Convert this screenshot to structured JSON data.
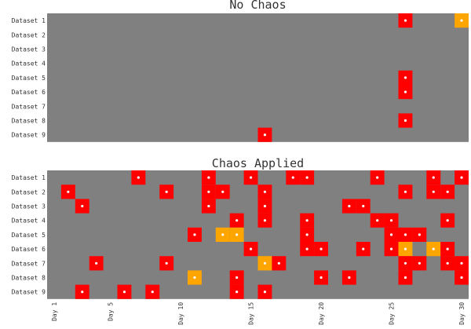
{
  "colors": {
    "background": "#808080",
    "red": "#ff0000",
    "orange": "#ffa500",
    "marker": "#ffffff"
  },
  "chart_data": [
    {
      "type": "heatmap",
      "title": "No Chaos",
      "rows": [
        "Dataset 1",
        "Dataset 2",
        "Dataset 3",
        "Dataset 4",
        "Dataset 5",
        "Dataset 6",
        "Dataset 7",
        "Dataset 8",
        "Dataset 9"
      ],
      "x_range": [
        1,
        30
      ],
      "cells": [
        {
          "row": "Dataset 1",
          "day": 26,
          "level": "red"
        },
        {
          "row": "Dataset 1",
          "day": 30,
          "level": "orange"
        },
        {
          "row": "Dataset 5",
          "day": 26,
          "level": "red"
        },
        {
          "row": "Dataset 6",
          "day": 26,
          "level": "red"
        },
        {
          "row": "Dataset 8",
          "day": 26,
          "level": "red"
        },
        {
          "row": "Dataset 9",
          "day": 16,
          "level": "red"
        }
      ]
    },
    {
      "type": "heatmap",
      "title": "Chaos Applied",
      "rows": [
        "Dataset 1",
        "Dataset 2",
        "Dataset 3",
        "Dataset 4",
        "Dataset 5",
        "Dataset 6",
        "Dataset 7",
        "Dataset 8",
        "Dataset 9"
      ],
      "x_range": [
        1,
        30
      ],
      "x_tick_labels": [
        "Day 1",
        "Day 5",
        "Day 10",
        "Day 15",
        "Day 20",
        "Day 25",
        "Day 30"
      ],
      "x_tick_days": [
        1,
        5,
        10,
        15,
        20,
        25,
        30
      ],
      "cells": [
        {
          "row": "Dataset 1",
          "day": 7,
          "level": "red"
        },
        {
          "row": "Dataset 1",
          "day": 12,
          "level": "red"
        },
        {
          "row": "Dataset 1",
          "day": 15,
          "level": "red"
        },
        {
          "row": "Dataset 1",
          "day": 18,
          "level": "red"
        },
        {
          "row": "Dataset 1",
          "day": 19,
          "level": "red"
        },
        {
          "row": "Dataset 1",
          "day": 24,
          "level": "red"
        },
        {
          "row": "Dataset 1",
          "day": 28,
          "level": "red"
        },
        {
          "row": "Dataset 1",
          "day": 30,
          "level": "red"
        },
        {
          "row": "Dataset 2",
          "day": 2,
          "level": "red"
        },
        {
          "row": "Dataset 2",
          "day": 9,
          "level": "red"
        },
        {
          "row": "Dataset 2",
          "day": 12,
          "level": "red"
        },
        {
          "row": "Dataset 2",
          "day": 13,
          "level": "red"
        },
        {
          "row": "Dataset 2",
          "day": 16,
          "level": "red"
        },
        {
          "row": "Dataset 2",
          "day": 26,
          "level": "red"
        },
        {
          "row": "Dataset 2",
          "day": 28,
          "level": "red"
        },
        {
          "row": "Dataset 2",
          "day": 29,
          "level": "red"
        },
        {
          "row": "Dataset 3",
          "day": 3,
          "level": "red"
        },
        {
          "row": "Dataset 3",
          "day": 12,
          "level": "red"
        },
        {
          "row": "Dataset 3",
          "day": 16,
          "level": "red"
        },
        {
          "row": "Dataset 3",
          "day": 22,
          "level": "red"
        },
        {
          "row": "Dataset 3",
          "day": 23,
          "level": "red"
        },
        {
          "row": "Dataset 4",
          "day": 14,
          "level": "red"
        },
        {
          "row": "Dataset 4",
          "day": 16,
          "level": "red"
        },
        {
          "row": "Dataset 4",
          "day": 19,
          "level": "red"
        },
        {
          "row": "Dataset 4",
          "day": 24,
          "level": "red"
        },
        {
          "row": "Dataset 4",
          "day": 25,
          "level": "red"
        },
        {
          "row": "Dataset 4",
          "day": 29,
          "level": "red"
        },
        {
          "row": "Dataset 5",
          "day": 11,
          "level": "red"
        },
        {
          "row": "Dataset 5",
          "day": 13,
          "level": "orange"
        },
        {
          "row": "Dataset 5",
          "day": 14,
          "level": "orange"
        },
        {
          "row": "Dataset 5",
          "day": 19,
          "level": "red"
        },
        {
          "row": "Dataset 5",
          "day": 25,
          "level": "red"
        },
        {
          "row": "Dataset 5",
          "day": 26,
          "level": "red"
        },
        {
          "row": "Dataset 5",
          "day": 27,
          "level": "red"
        },
        {
          "row": "Dataset 6",
          "day": 15,
          "level": "red"
        },
        {
          "row": "Dataset 6",
          "day": 19,
          "level": "red"
        },
        {
          "row": "Dataset 6",
          "day": 20,
          "level": "red"
        },
        {
          "row": "Dataset 6",
          "day": 23,
          "level": "red"
        },
        {
          "row": "Dataset 6",
          "day": 25,
          "level": "red"
        },
        {
          "row": "Dataset 6",
          "day": 26,
          "level": "orange"
        },
        {
          "row": "Dataset 6",
          "day": 28,
          "level": "orange"
        },
        {
          "row": "Dataset 6",
          "day": 29,
          "level": "red"
        },
        {
          "row": "Dataset 7",
          "day": 4,
          "level": "red"
        },
        {
          "row": "Dataset 7",
          "day": 9,
          "level": "red"
        },
        {
          "row": "Dataset 7",
          "day": 16,
          "level": "orange"
        },
        {
          "row": "Dataset 7",
          "day": 17,
          "level": "red"
        },
        {
          "row": "Dataset 7",
          "day": 26,
          "level": "red"
        },
        {
          "row": "Dataset 7",
          "day": 27,
          "level": "red"
        },
        {
          "row": "Dataset 7",
          "day": 29,
          "level": "red"
        },
        {
          "row": "Dataset 7",
          "day": 30,
          "level": "red"
        },
        {
          "row": "Dataset 8",
          "day": 11,
          "level": "orange"
        },
        {
          "row": "Dataset 8",
          "day": 14,
          "level": "red"
        },
        {
          "row": "Dataset 8",
          "day": 20,
          "level": "red"
        },
        {
          "row": "Dataset 8",
          "day": 22,
          "level": "red"
        },
        {
          "row": "Dataset 8",
          "day": 26,
          "level": "red"
        },
        {
          "row": "Dataset 8",
          "day": 30,
          "level": "red"
        },
        {
          "row": "Dataset 9",
          "day": 3,
          "level": "red"
        },
        {
          "row": "Dataset 9",
          "day": 6,
          "level": "red"
        },
        {
          "row": "Dataset 9",
          "day": 8,
          "level": "red"
        },
        {
          "row": "Dataset 9",
          "day": 14,
          "level": "red"
        },
        {
          "row": "Dataset 9",
          "day": 16,
          "level": "red"
        }
      ]
    }
  ]
}
